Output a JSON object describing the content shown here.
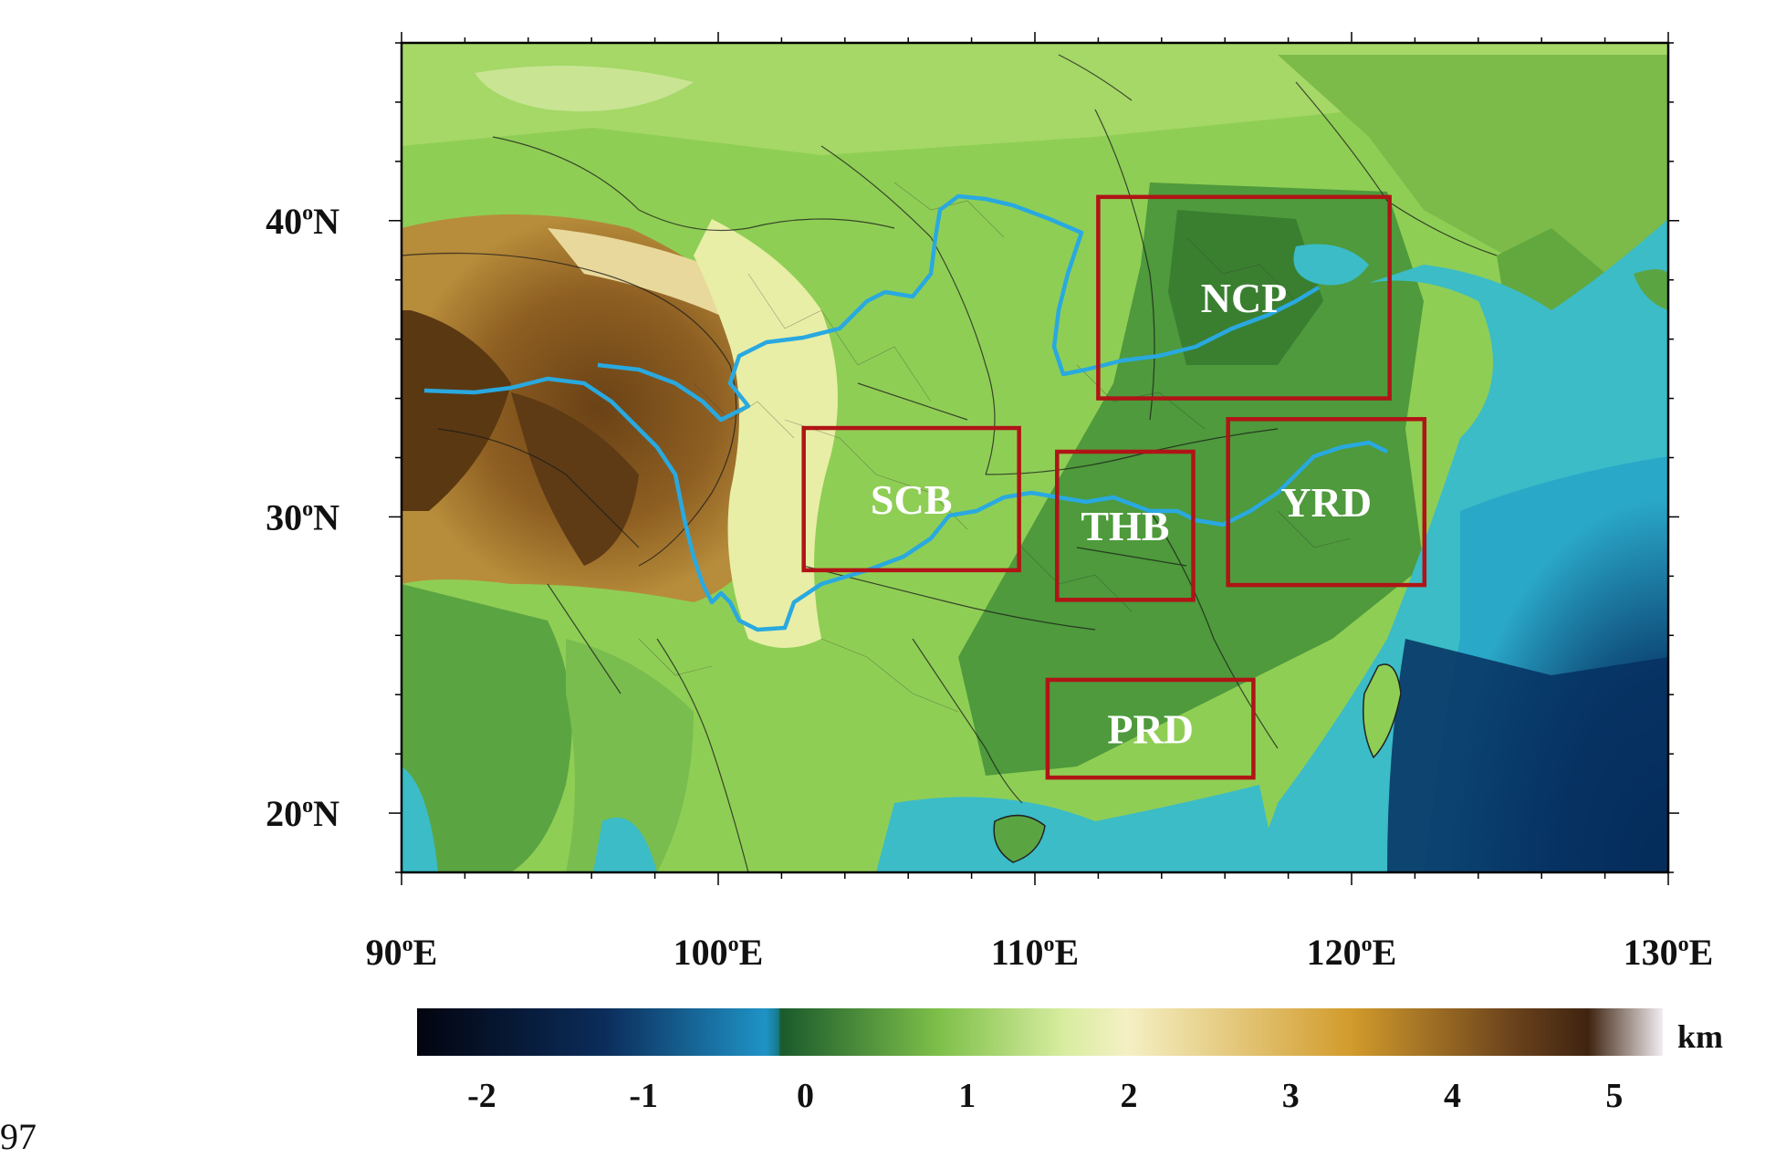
{
  "map": {
    "lon_ticks": [
      {
        "value": 90,
        "label_num": "90",
        "label_sup": "o",
        "label_dir": "E"
      },
      {
        "value": 100,
        "label_num": "100",
        "label_sup": "o",
        "label_dir": "E"
      },
      {
        "value": 110,
        "label_num": "110",
        "label_sup": "o",
        "label_dir": "E"
      },
      {
        "value": 120,
        "label_num": "120",
        "label_sup": "o",
        "label_dir": "E"
      },
      {
        "value": 130,
        "label_num": "130",
        "label_sup": "o",
        "label_dir": "E"
      }
    ],
    "lat_ticks": [
      {
        "value": 40,
        "label_num": "40",
        "label_sup": "o",
        "label_dir": "N"
      },
      {
        "value": 30,
        "label_num": "30",
        "label_sup": "o",
        "label_dir": "N"
      },
      {
        "value": 20,
        "label_num": "20",
        "label_sup": "o",
        "label_dir": "N"
      }
    ],
    "lon_range": [
      90,
      130
    ],
    "lat_range": [
      18,
      46
    ],
    "regions": [
      {
        "name": "NCP",
        "lon": [
          112,
          121.2
        ],
        "lat": [
          34,
          40.8
        ]
      },
      {
        "name": "SCB",
        "lon": [
          102.7,
          109.5
        ],
        "lat": [
          28.2,
          33
        ]
      },
      {
        "name": "THB",
        "lon": [
          110.7,
          115
        ],
        "lat": [
          27.2,
          32.2
        ]
      },
      {
        "name": "YRD",
        "lon": [
          116.1,
          122.3
        ],
        "lat": [
          27.7,
          33.3
        ]
      },
      {
        "name": "PRD",
        "lon": [
          110.4,
          116.9
        ],
        "lat": [
          21.2,
          24.5
        ]
      }
    ]
  },
  "colorbar": {
    "ticks": [
      "-2",
      "-1",
      "0",
      "1",
      "2",
      "3",
      "4",
      "5"
    ],
    "tick_values": [
      -2,
      -1,
      0,
      1,
      2,
      3,
      4,
      5
    ],
    "range": [
      -2.4,
      5.3
    ],
    "unit": "km",
    "colors": [
      "#05061a",
      "#0a2a55",
      "#1f8fc4",
      "#1a5a2c",
      "#7fc04a",
      "#f3efbf",
      "#c8a043",
      "#5d3a1a",
      "#f2eef0"
    ]
  },
  "page_number": "97"
}
